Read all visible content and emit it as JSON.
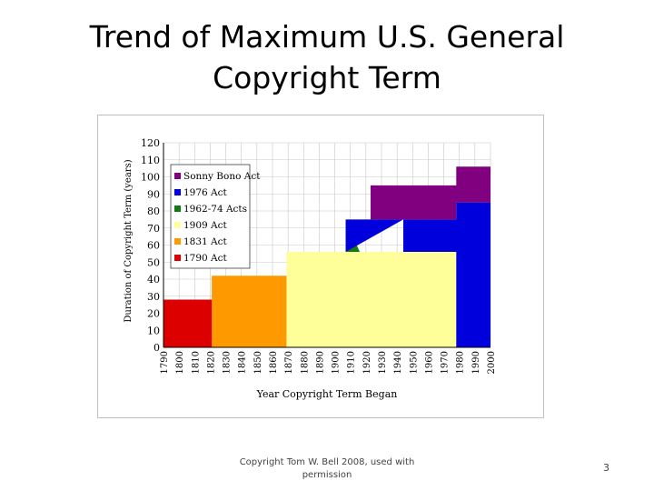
{
  "slide": {
    "title_line1": "Trend of Maximum U.S. General",
    "title_line2": "Copyright Term",
    "footer": "Copyright Tom W. Bell 2008, used with permission",
    "page_number": "3"
  },
  "chart_data": {
    "type": "area",
    "xlabel": "Year Copyright Term Began",
    "ylabel": "Duration of Copyright Term (years)",
    "xlim": [
      1790,
      2000
    ],
    "ylim": [
      0,
      120
    ],
    "x_ticks": [
      1790,
      1800,
      1810,
      1820,
      1830,
      1840,
      1850,
      1860,
      1870,
      1880,
      1890,
      1900,
      1910,
      1920,
      1930,
      1940,
      1950,
      1960,
      1970,
      1980,
      1990,
      2000
    ],
    "y_ticks": [
      0,
      10,
      20,
      30,
      40,
      50,
      60,
      70,
      80,
      90,
      100,
      110,
      120
    ],
    "grid": true,
    "legend_position": "top-left",
    "legend": [
      "Sonny Bono Act",
      "1976 Act",
      "1962-74 Acts",
      "1909 Act",
      "1831 Act",
      "1790 Act"
    ],
    "colors": {
      "1790 Act": "#dd0000",
      "1831 Act": "#ff9900",
      "1909 Act": "#ffff99",
      "1962-74 Acts": "#127a12",
      "1976 Act": "#0000dd",
      "Sonny Bono Act": "#800080"
    },
    "regions": [
      {
        "name": "1790 Act",
        "points": [
          [
            1790,
            0
          ],
          [
            1790,
            28
          ],
          [
            1831,
            28
          ],
          [
            1831,
            0
          ]
        ]
      },
      {
        "name": "1831 Act",
        "points": [
          [
            1821,
            0
          ],
          [
            1821,
            42
          ],
          [
            1909,
            42
          ],
          [
            1909,
            0
          ]
        ]
      },
      {
        "name": "1909 Act",
        "points": [
          [
            1869,
            0
          ],
          [
            1869,
            56
          ],
          [
            1978,
            56
          ],
          [
            1978,
            0
          ]
        ]
      },
      {
        "name": "1962-74 Acts",
        "points": [
          [
            1907,
            56
          ],
          [
            1907,
            75
          ],
          [
            1916,
            56
          ]
        ]
      },
      {
        "name": "1976 Act",
        "points": [
          [
            1907,
            56
          ],
          [
            1907,
            75
          ],
          [
            1944,
            75
          ],
          [
            1944,
            56
          ],
          [
            1978,
            56
          ],
          [
            1978,
            0
          ],
          [
            2000,
            0
          ],
          [
            2000,
            85
          ],
          [
            1978,
            85
          ],
          [
            1978,
            75
          ],
          [
            1944,
            75
          ]
        ]
      },
      {
        "name": "Sonny Bono Act",
        "points": [
          [
            1923,
            75
          ],
          [
            1923,
            95
          ],
          [
            1978,
            95
          ],
          [
            1978,
            106
          ],
          [
            2000,
            106
          ],
          [
            2000,
            85
          ],
          [
            1978,
            85
          ],
          [
            1978,
            75
          ]
        ]
      }
    ]
  }
}
